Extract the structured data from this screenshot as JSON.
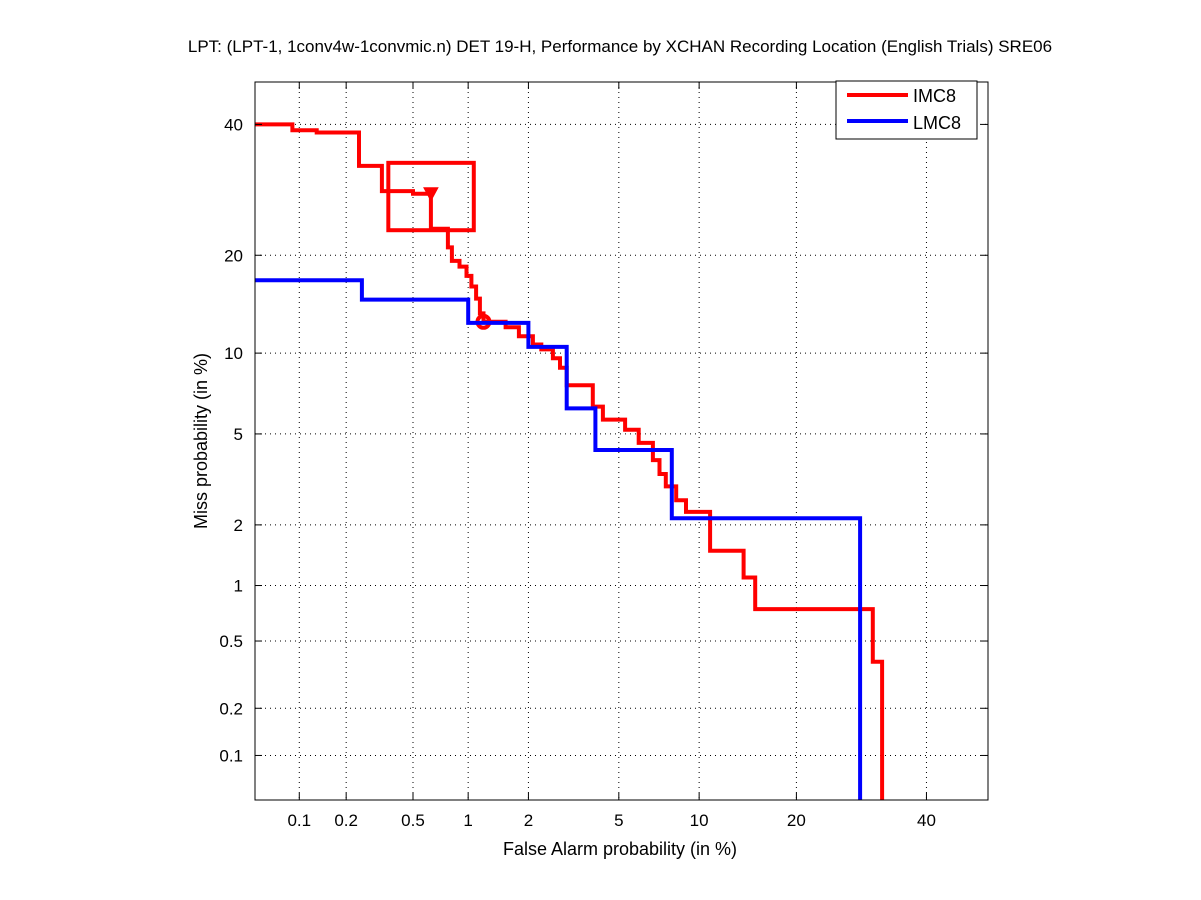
{
  "chart_data": {
    "type": "line",
    "scale": "DET (normal deviate) on both axes",
    "title": "LPT: (LPT-1, 1conv4w-1convmic.n) DET 19-H,  Performance by XCHAN Recording Location (English Trials) SRE06",
    "xlabel": "False Alarm probability (in %)",
    "ylabel": "Miss probability (in %)",
    "xlim": [
      0.05,
      51
    ],
    "ylim": [
      0.05,
      47.5
    ],
    "xticks": [
      0.1,
      0.2,
      0.5,
      1,
      2,
      5,
      10,
      20,
      40
    ],
    "xtick_labels": [
      "0.1",
      "0.2",
      "0.5",
      "1",
      "2",
      "5",
      "10",
      "20",
      "40"
    ],
    "yticks": [
      0.1,
      0.2,
      0.5,
      1,
      2,
      5,
      10,
      20,
      40
    ],
    "ytick_labels": [
      "0.1",
      "0.2",
      "0.5",
      "1",
      "2",
      "5",
      "10",
      "20",
      "40"
    ],
    "grid": true,
    "legend_position": "top-right",
    "series": [
      {
        "name": "IMC8",
        "color": "#ff0000",
        "points": [
          [
            0.05,
            40
          ],
          [
            0.09,
            40
          ],
          [
            0.09,
            39
          ],
          [
            0.13,
            39
          ],
          [
            0.13,
            38.6
          ],
          [
            0.24,
            38.6
          ],
          [
            0.24,
            33
          ],
          [
            0.33,
            33
          ],
          [
            0.33,
            29
          ],
          [
            0.5,
            29
          ],
          [
            0.5,
            28.6
          ],
          [
            0.63,
            28.6
          ],
          [
            0.63,
            23.5
          ],
          [
            0.78,
            23.5
          ],
          [
            0.78,
            21
          ],
          [
            0.82,
            21
          ],
          [
            0.82,
            19.3
          ],
          [
            0.9,
            19.3
          ],
          [
            0.9,
            18.6
          ],
          [
            0.98,
            18.6
          ],
          [
            0.98,
            17.5
          ],
          [
            1.04,
            17.5
          ],
          [
            1.04,
            16.3
          ],
          [
            1.1,
            16.3
          ],
          [
            1.1,
            15
          ],
          [
            1.15,
            15
          ],
          [
            1.15,
            13.5
          ],
          [
            1.2,
            13.5
          ],
          [
            1.2,
            12.7
          ],
          [
            1.55,
            12.7
          ],
          [
            1.55,
            12.2
          ],
          [
            1.8,
            12.2
          ],
          [
            1.8,
            11.4
          ],
          [
            2.1,
            11.4
          ],
          [
            2.1,
            10.7
          ],
          [
            2.3,
            10.7
          ],
          [
            2.3,
            10.3
          ],
          [
            2.6,
            10.3
          ],
          [
            2.6,
            9.6
          ],
          [
            2.8,
            9.6
          ],
          [
            2.8,
            8.9
          ],
          [
            3.0,
            8.9
          ],
          [
            3.0,
            7.7
          ],
          [
            3.9,
            7.7
          ],
          [
            3.9,
            6.4
          ],
          [
            4.3,
            6.4
          ],
          [
            4.3,
            5.7
          ],
          [
            5.3,
            5.7
          ],
          [
            5.3,
            5.2
          ],
          [
            6.0,
            5.2
          ],
          [
            6.0,
            4.6
          ],
          [
            6.8,
            4.6
          ],
          [
            6.8,
            3.9
          ],
          [
            7.2,
            3.9
          ],
          [
            7.2,
            3.4
          ],
          [
            7.6,
            3.4
          ],
          [
            7.6,
            3.0
          ],
          [
            8.3,
            3.0
          ],
          [
            8.3,
            2.6
          ],
          [
            9.0,
            2.6
          ],
          [
            9.0,
            2.3
          ],
          [
            10.9,
            2.3
          ],
          [
            10.9,
            1.5
          ],
          [
            14,
            1.5
          ],
          [
            14,
            1.1
          ],
          [
            15.2,
            1.1
          ],
          [
            15.2,
            0.75
          ],
          [
            31,
            0.75
          ],
          [
            31,
            0.38
          ],
          [
            32.5,
            0.38
          ],
          [
            32.5,
            0.05
          ]
        ],
        "markers": [
          {
            "type": "triangle-down",
            "point": [
              0.63,
              28.6
            ]
          },
          {
            "type": "circle",
            "point": [
              1.2,
              12.7
            ]
          }
        ],
        "box": {
          "x": [
            0.36,
            1.07
          ],
          "y": [
            23.3,
            33.5
          ]
        }
      },
      {
        "name": "LMC8",
        "color": "#0000ff",
        "points": [
          [
            0.05,
            17
          ],
          [
            0.25,
            17
          ],
          [
            0.25,
            14.9
          ],
          [
            1.0,
            14.9
          ],
          [
            1.0,
            12.6
          ],
          [
            2.0,
            12.6
          ],
          [
            2.0,
            10.5
          ],
          [
            3.0,
            10.5
          ],
          [
            3.0,
            6.3
          ],
          [
            4.0,
            6.3
          ],
          [
            4.0,
            4.3
          ],
          [
            8.0,
            4.3
          ],
          [
            8.0,
            2.15
          ],
          [
            29,
            2.15
          ],
          [
            29,
            0.05
          ]
        ]
      }
    ]
  }
}
